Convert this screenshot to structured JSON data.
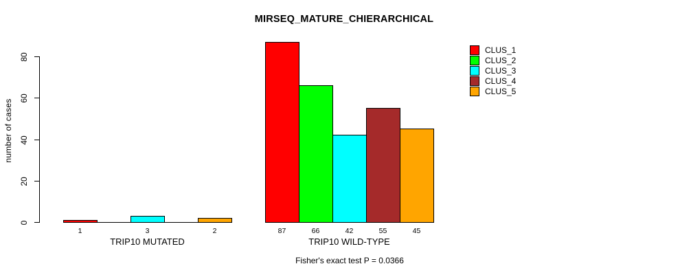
{
  "figure": {
    "title": "MIRSEQ_MATURE_CHIERARCHICAL",
    "y_axis_label": "number of cases",
    "annotation": "Fisher's exact test P = 0.0366"
  },
  "chart_data": {
    "type": "bar",
    "title": "MIRSEQ_MATURE_CHIERARCHICAL",
    "xlabel": "",
    "ylabel": "number of cases",
    "ylim": [
      0,
      87
    ],
    "yticks": [
      0,
      20,
      40,
      60,
      80
    ],
    "grid": false,
    "legend_position": "right",
    "bar_border_color": "#000000",
    "categories": [
      "TRIP10 MUTATED",
      "TRIP10 WILD-TYPE"
    ],
    "series": [
      {
        "name": "CLUS_1",
        "color": "#FF0000",
        "values": [
          1,
          87
        ]
      },
      {
        "name": "CLUS_2",
        "color": "#00FF00",
        "values": [
          0,
          66
        ]
      },
      {
        "name": "CLUS_3",
        "color": "#00FFFF",
        "values": [
          3,
          42
        ]
      },
      {
        "name": "CLUS_4",
        "color": "#A52A2A",
        "values": [
          0,
          55
        ]
      },
      {
        "name": "CLUS_5",
        "color": "#FFA500",
        "values": [
          2,
          45
        ]
      }
    ],
    "bar_value_labels": {
      "TRIP10 MUTATED": [
        "1",
        "",
        "3",
        "",
        "2"
      ],
      "TRIP10 WILD-TYPE": [
        "87",
        "66",
        "42",
        "55",
        "45"
      ]
    },
    "zero_value_labels_hidden": true,
    "annotation": "Fisher's exact test P = 0.0366"
  }
}
